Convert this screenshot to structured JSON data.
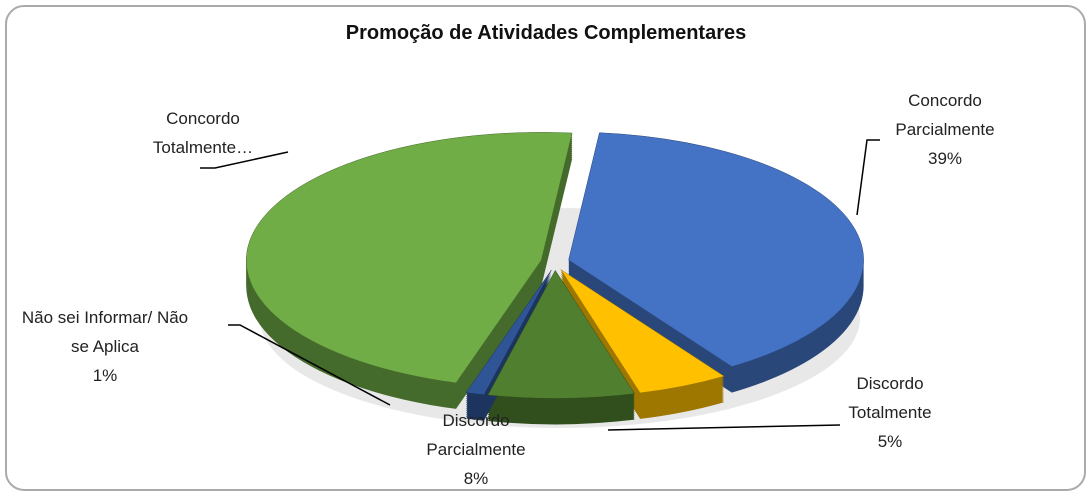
{
  "chart_data": {
    "type": "pie",
    "title": "Promoção de Atividades Complementares",
    "categories": [
      "Concordo Parcialmente",
      "Discordo Totalmente",
      "Discordo Parcialmente",
      "Não sei Informar/ Não se Aplica",
      "Concordo Totalmente…"
    ],
    "values": [
      39,
      5,
      8,
      1,
      47
    ],
    "value_labels": [
      "39%",
      "5%",
      "8%",
      "1%",
      null
    ],
    "colors": [
      "#4472c4",
      "#ffc000",
      "#4f7f2f",
      "#2f5597",
      "#70ad47"
    ]
  }
}
